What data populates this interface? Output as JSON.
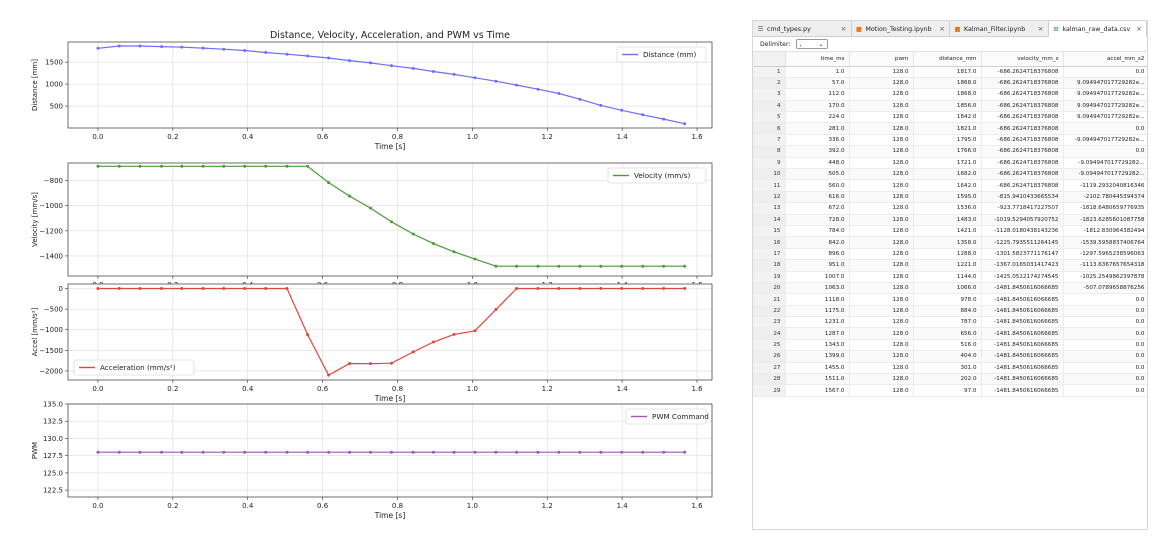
{
  "figure": {
    "title": "Distance, Velocity, Acceleration, and PWM vs Time",
    "x_label": "Time [s]",
    "x_ticks": [
      "0.0",
      "0.2",
      "0.4",
      "0.6",
      "0.8",
      "1.0",
      "1.2",
      "1.4",
      "1.6"
    ],
    "colors": {
      "distance": "#6e6ef7",
      "velocity": "#4a9a3a",
      "acceleration": "#e0463c",
      "pwm": "#9b56b8"
    }
  },
  "chart_data": [
    {
      "type": "line",
      "title": "Distance, Velocity, Acceleration, and PWM vs Time",
      "xlabel": "Time [s]",
      "ylabel": "Distance [mm]",
      "xlim": [
        -0.08,
        1.64
      ],
      "ylim": [
        0,
        1960
      ],
      "yticks": [
        500,
        1000,
        1500
      ],
      "grid": true,
      "legend": "top-right",
      "series": [
        {
          "name": "Distance (mm)",
          "x": [
            0.0,
            0.057,
            0.112,
            0.17,
            0.224,
            0.281,
            0.336,
            0.392,
            0.448,
            0.505,
            0.56,
            0.616,
            0.672,
            0.728,
            0.784,
            0.842,
            0.896,
            0.951,
            1.007,
            1.063,
            1.118,
            1.175,
            1.231,
            1.287,
            1.343,
            1.399,
            1.455,
            1.511,
            1.567
          ],
          "y": [
            1817,
            1868,
            1868,
            1856,
            1842,
            1821,
            1795,
            1766,
            1721,
            1682,
            1642,
            1595,
            1536,
            1483,
            1421,
            1358,
            1288,
            1221,
            1144,
            1066,
            978,
            884,
            787,
            656,
            516,
            404,
            301,
            202,
            97
          ]
        }
      ]
    },
    {
      "type": "line",
      "xlabel": "Time [s]",
      "ylabel": "Velocity [mm/s]",
      "xlim": [
        -0.08,
        1.64
      ],
      "ylim": [
        -1560,
        -660
      ],
      "yticks": [
        -1400,
        -1200,
        -1000,
        -800
      ],
      "grid": true,
      "legend": "top-right",
      "series": [
        {
          "name": "Velocity (mm/s)",
          "x": [
            0.0,
            0.057,
            0.112,
            0.17,
            0.224,
            0.281,
            0.336,
            0.392,
            0.448,
            0.505,
            0.56,
            0.616,
            0.672,
            0.728,
            0.784,
            0.842,
            0.896,
            0.951,
            1.007,
            1.063,
            1.118,
            1.175,
            1.231,
            1.287,
            1.343,
            1.399,
            1.455,
            1.511,
            1.567
          ],
          "y": [
            -686.26,
            -686.26,
            -686.26,
            -686.26,
            -686.26,
            -686.26,
            -686.26,
            -686.26,
            -686.26,
            -686.26,
            -686.26,
            -815.94,
            -923.77,
            -1019.53,
            -1128.02,
            -1225.79,
            -1301.58,
            -1367.02,
            -1425.05,
            -1481.85,
            -1481.85,
            -1481.85,
            -1481.85,
            -1481.85,
            -1481.85,
            -1481.85,
            -1481.85,
            -1481.85,
            -1481.85
          ]
        }
      ]
    },
    {
      "type": "line",
      "xlabel": "Time [s]",
      "ylabel": "Accel [mm/s²]",
      "xlim": [
        -0.08,
        1.64
      ],
      "ylim": [
        -2220,
        110
      ],
      "yticks": [
        -2000,
        -1500,
        -1000,
        -500,
        0
      ],
      "grid": true,
      "legend": "bottom-left",
      "series": [
        {
          "name": "Acceleration (mm/s²)",
          "x": [
            0.0,
            0.057,
            0.112,
            0.17,
            0.224,
            0.281,
            0.336,
            0.392,
            0.448,
            0.505,
            0.56,
            0.616,
            0.672,
            0.728,
            0.784,
            0.842,
            0.896,
            0.951,
            1.007,
            1.063,
            1.118,
            1.175,
            1.231,
            1.287,
            1.343,
            1.399,
            1.455,
            1.511,
            1.567
          ],
          "y": [
            0,
            0,
            0,
            0,
            0,
            0,
            0,
            0,
            0,
            0,
            -1119.29,
            -2102.78,
            -1818.65,
            -1823.63,
            -1812.83,
            -1539.6,
            -1297.6,
            -1113.64,
            -1025.25,
            -507.08,
            0,
            0,
            0,
            0,
            0,
            0,
            0,
            0,
            0
          ]
        }
      ]
    },
    {
      "type": "line",
      "xlabel": "Time [s]",
      "ylabel": "PWM",
      "xlim": [
        -0.08,
        1.64
      ],
      "ylim": [
        121.5,
        135
      ],
      "yticks": [
        122.5,
        125.0,
        127.5,
        130.0,
        132.5,
        135.0
      ],
      "grid": true,
      "legend": "top-right",
      "series": [
        {
          "name": "PWM Command",
          "x": [
            0.0,
            0.057,
            0.112,
            0.17,
            0.224,
            0.281,
            0.336,
            0.392,
            0.448,
            0.505,
            0.56,
            0.616,
            0.672,
            0.728,
            0.784,
            0.842,
            0.896,
            0.951,
            1.007,
            1.063,
            1.118,
            1.175,
            1.231,
            1.287,
            1.343,
            1.399,
            1.455,
            1.511,
            1.567
          ],
          "y": [
            128,
            128,
            128,
            128,
            128,
            128,
            128,
            128,
            128,
            128,
            128,
            128,
            128,
            128,
            128,
            128,
            128,
            128,
            128,
            128,
            128,
            128,
            128,
            128,
            128,
            128,
            128,
            128,
            128
          ]
        }
      ]
    }
  ],
  "tabs": [
    {
      "label": "cmd_types.py",
      "icon": "☰",
      "color": "#555555",
      "close": "×"
    },
    {
      "label": "Motion_Testing.ipynb",
      "icon": "■",
      "color": "#e87722",
      "close": "×"
    },
    {
      "label": "Kalman_Filter.ipynb",
      "icon": "■",
      "color": "#e87722",
      "close": "×"
    },
    {
      "label": "kalman_raw_data.csv",
      "icon": "⊞",
      "color": "#3f8f3f",
      "close": "×"
    }
  ],
  "toolbar": {
    "delimiter_label": "Delimiter:",
    "delimiter_value": ",",
    "chevron": "⌄"
  },
  "table": {
    "columns": [
      "time_ms",
      "pwm",
      "distance_mm",
      "velocity_mm_s",
      "accel_mm_s2"
    ],
    "rows": [
      [
        "1",
        "1.0",
        "128.0",
        "1817.0",
        "-686.2624718376808",
        "0.0"
      ],
      [
        "2",
        "57.0",
        "128.0",
        "1868.0",
        "-686.2624718376808",
        "9.094947017729282e..."
      ],
      [
        "3",
        "112.0",
        "128.0",
        "1868.0",
        "-686.2624718376808",
        "9.094947017729282e..."
      ],
      [
        "4",
        "170.0",
        "128.0",
        "1856.0",
        "-686.2624718376808",
        "9.094947017729282e..."
      ],
      [
        "5",
        "224.0",
        "128.0",
        "1842.0",
        "-686.2624718376808",
        "9.094947017729282e..."
      ],
      [
        "6",
        "281.0",
        "128.0",
        "1821.0",
        "-686.2624718376808",
        "0.0"
      ],
      [
        "7",
        "336.0",
        "128.0",
        "1795.0",
        "-686.2624718376808",
        "-9.094947017729282e..."
      ],
      [
        "8",
        "392.0",
        "128.0",
        "1766.0",
        "-686.2624718376808",
        "0.0"
      ],
      [
        "9",
        "448.0",
        "128.0",
        "1721.0",
        "-686.2624718376808",
        "-9.094947017729282..."
      ],
      [
        "10",
        "505.0",
        "128.0",
        "1682.0",
        "-686.2624718376808",
        "-9.094947017729282..."
      ],
      [
        "11",
        "560.0",
        "128.0",
        "1642.0",
        "-686.2624718376808",
        "-1119.2932040816346"
      ],
      [
        "12",
        "616.0",
        "128.0",
        "1595.0",
        "-815.9410433665534",
        "-2102.780445394374"
      ],
      [
        "13",
        "672.0",
        "128.0",
        "1536.0",
        "-923.7718417227507",
        "-1818.6480659776935"
      ],
      [
        "14",
        "728.0",
        "128.0",
        "1483.0",
        "-1019.5294057920752",
        "-1823.6285601087758"
      ],
      [
        "15",
        "784.0",
        "128.0",
        "1421.0",
        "-1128.0180438143236",
        "-1812.830964382494"
      ],
      [
        "16",
        "842.0",
        "128.0",
        "1358.0",
        "-1225.7935511264145",
        "-1539.5958837406764"
      ],
      [
        "17",
        "896.0",
        "128.0",
        "1288.0",
        "-1301.5823771176147",
        "-1297.5965238596063"
      ],
      [
        "18",
        "951.0",
        "128.0",
        "1221.0",
        "-1367.0165031417423",
        "-1113.6367657654318"
      ],
      [
        "19",
        "1007.0",
        "128.0",
        "1144.0",
        "-1425.0522174274545",
        "-1025.2549862397878"
      ],
      [
        "20",
        "1063.0",
        "128.0",
        "1066.0",
        "-1481.8450616066685",
        "-507.0789658876256"
      ],
      [
        "21",
        "1118.0",
        "128.0",
        "978.0",
        "-1481.8450616066685",
        "0.0"
      ],
      [
        "22",
        "1175.0",
        "128.0",
        "884.0",
        "-1481.8450616066685",
        "0.0"
      ],
      [
        "23",
        "1231.0",
        "128.0",
        "787.0",
        "-1481.8450616066685",
        "0.0"
      ],
      [
        "24",
        "1287.0",
        "128.0",
        "656.0",
        "-1481.8450616066685",
        "0.0"
      ],
      [
        "25",
        "1343.0",
        "128.0",
        "516.0",
        "-1481.8450616066685",
        "0.0"
      ],
      [
        "26",
        "1399.0",
        "128.0",
        "404.0",
        "-1481.8450616066685",
        "0.0"
      ],
      [
        "27",
        "1455.0",
        "128.0",
        "301.0",
        "-1481.8450616066685",
        "0.0"
      ],
      [
        "28",
        "1511.0",
        "128.0",
        "202.0",
        "-1481.8450616066685",
        "0.0"
      ],
      [
        "29",
        "1567.0",
        "128.0",
        "97.0",
        "-1481.8450616066685",
        "0.0"
      ]
    ]
  }
}
